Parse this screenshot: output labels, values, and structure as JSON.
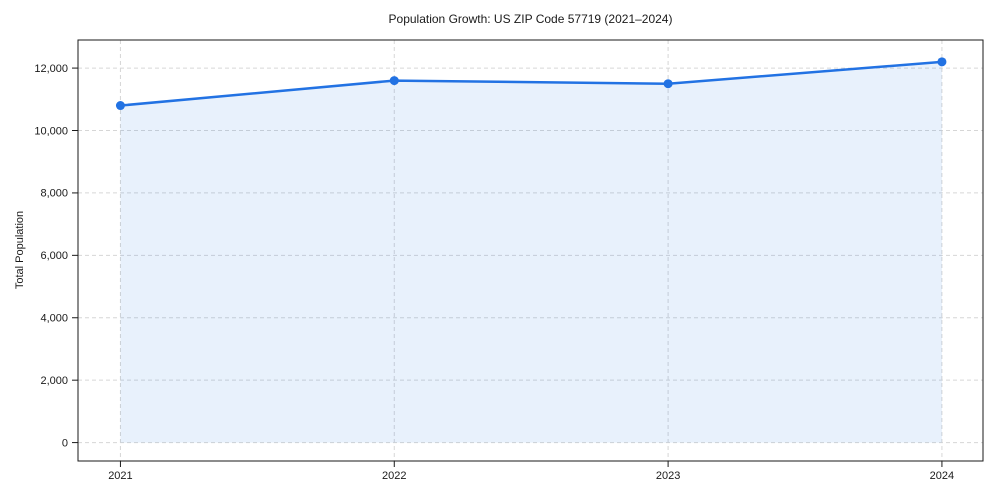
{
  "chart_data": {
    "type": "line",
    "title": "Population Growth: US ZIP Code 57719 (2021–2024)",
    "xlabel": "",
    "ylabel": "Total Population",
    "x": [
      2021,
      2022,
      2023,
      2024
    ],
    "series": [
      {
        "name": "Total Population",
        "values": [
          10800,
          11600,
          11500,
          12200
        ]
      }
    ],
    "xticklabels": [
      "2021",
      "2022",
      "2023",
      "2024"
    ],
    "yticks": [
      0,
      2000,
      4000,
      6000,
      8000,
      10000,
      12000
    ],
    "yticklabels": [
      "0",
      "2,000",
      "4,000",
      "6,000",
      "8,000",
      "10,000",
      "12,000"
    ],
    "xlim": [
      2020.845,
      2024.15
    ],
    "ylim": [
      -590,
      12900
    ],
    "grid": true,
    "grid_style": "dashed",
    "legend": "none",
    "marker": "circle",
    "area_fill": true,
    "colors": {
      "line": "#2272e3",
      "marker": "#2272e3",
      "fill": "rgba(34,114,227,0.10)",
      "grid": "#d6d6d6",
      "spine": "#1a1a1a",
      "text": "#1a1a1a",
      "background": "#ffffff"
    }
  }
}
